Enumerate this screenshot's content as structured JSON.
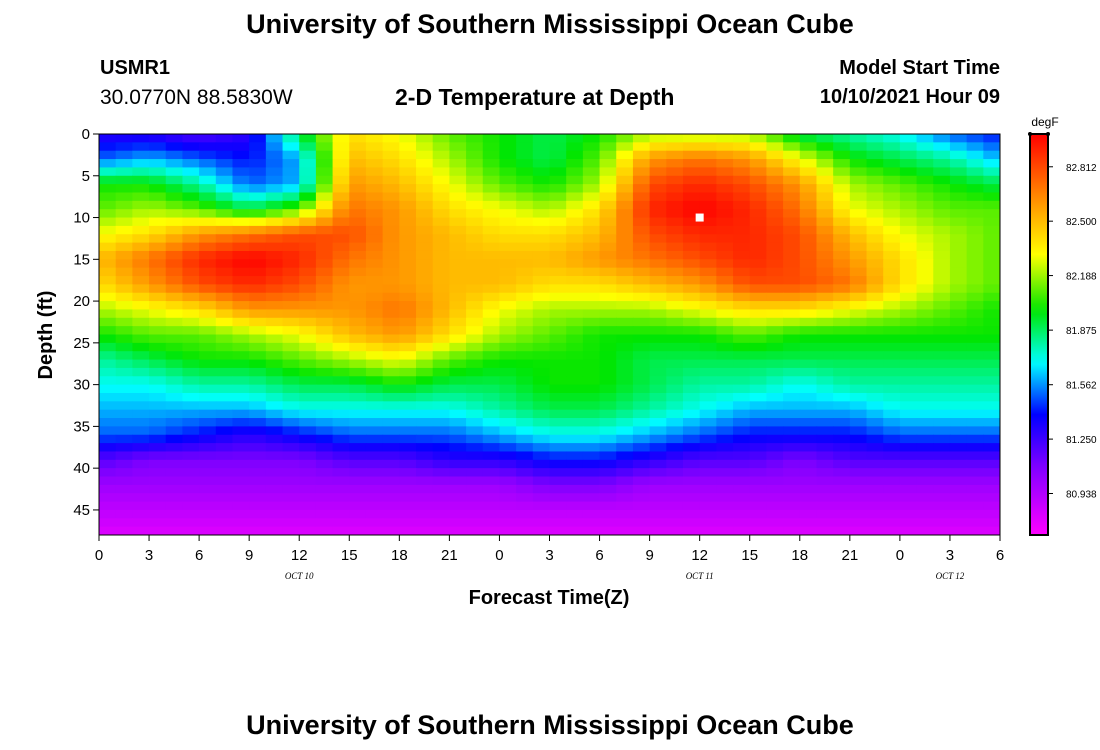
{
  "page": {
    "title": "University of Southern Mississippi Ocean Cube",
    "footer_title": "University of Southern Mississippi Ocean Cube",
    "station_id": "USMR1",
    "station_coords": "30.0770N  88.5830W",
    "chart_heading": "2-D Temperature at Depth",
    "model_start_label": "Model Start Time",
    "model_start_value": "10/10/2021 Hour 09"
  },
  "chart_data": {
    "type": "heatmap",
    "title": "2-D Temperature at Depth",
    "xlabel": "Forecast Time(Z)",
    "ylabel": "Depth (ft)",
    "x_hours_from_start": [
      0,
      3,
      6,
      9,
      12,
      15,
      18,
      21,
      24,
      27,
      30,
      33,
      36,
      39,
      42,
      45,
      48,
      51,
      54
    ],
    "x_tick_labels": [
      "0",
      "3",
      "6",
      "9",
      "12",
      "15",
      "18",
      "21",
      "0",
      "3",
      "6",
      "9",
      "12",
      "15",
      "18",
      "21",
      "0",
      "3",
      "6"
    ],
    "date_labels": [
      {
        "text": "OCT 10",
        "hour": 12
      },
      {
        "text": "OCT 11",
        "hour": 36
      },
      {
        "text": "OCT 12",
        "hour": 51
      }
    ],
    "xlim": [
      0,
      54
    ],
    "ylim": [
      0,
      48
    ],
    "y_ticks": [
      0,
      5,
      10,
      15,
      20,
      25,
      30,
      35,
      40,
      45
    ],
    "colorbar": {
      "unit": "degF",
      "min": 80.7,
      "max": 83.0,
      "tick_values": [
        82.812,
        82.5,
        82.188,
        81.875,
        81.562,
        81.25,
        80.938
      ],
      "tick_labels": [
        "82.812",
        "82.500",
        "82.188",
        "81.875",
        "81.562",
        "81.250",
        "80.938"
      ]
    },
    "marker": {
      "hour": 36,
      "depth": 10,
      "color": "#ffffff"
    },
    "temperature_degF": {
      "hours": [
        0,
        3,
        6,
        9,
        12,
        15,
        18,
        21,
        24,
        27,
        30,
        33,
        36,
        39,
        42,
        45,
        48,
        51,
        54
      ],
      "depths": [
        0,
        3,
        6,
        9,
        12,
        15,
        18,
        21,
        24,
        27,
        30,
        33,
        36,
        39,
        42,
        45,
        48
      ],
      "rows": [
        [
          81.3,
          81.3,
          81.2,
          81.3,
          81.9,
          82.4,
          82.3,
          82.1,
          82.0,
          81.9,
          82.0,
          82.2,
          82.2,
          82.2,
          81.9,
          81.8,
          81.7,
          81.5,
          81.4
        ],
        [
          81.5,
          81.6,
          81.5,
          81.4,
          81.6,
          82.5,
          82.4,
          82.2,
          82.0,
          81.9,
          82.1,
          82.6,
          82.7,
          82.6,
          82.3,
          82.0,
          81.9,
          81.8,
          81.6
        ],
        [
          82.0,
          82.0,
          81.8,
          81.5,
          81.6,
          82.6,
          82.5,
          82.3,
          82.1,
          82.0,
          82.2,
          82.8,
          82.9,
          82.8,
          82.6,
          82.2,
          82.1,
          82.0,
          81.9
        ],
        [
          82.1,
          82.2,
          82.1,
          81.9,
          82.1,
          82.7,
          82.6,
          82.4,
          82.3,
          82.2,
          82.4,
          82.9,
          83.0,
          82.9,
          82.7,
          82.3,
          82.2,
          82.1,
          82.1
        ],
        [
          82.3,
          82.4,
          82.6,
          82.7,
          82.8,
          82.8,
          82.6,
          82.5,
          82.4,
          82.4,
          82.5,
          82.8,
          82.9,
          82.9,
          82.8,
          82.5,
          82.3,
          82.2,
          82.1
        ],
        [
          82.5,
          82.7,
          82.9,
          83.0,
          82.9,
          82.7,
          82.6,
          82.5,
          82.5,
          82.5,
          82.6,
          82.7,
          82.8,
          82.9,
          82.8,
          82.6,
          82.4,
          82.2,
          82.1
        ],
        [
          82.4,
          82.6,
          82.8,
          82.9,
          82.8,
          82.6,
          82.6,
          82.5,
          82.5,
          82.4,
          82.4,
          82.5,
          82.6,
          82.8,
          82.8,
          82.7,
          82.4,
          82.2,
          82.1
        ],
        [
          82.2,
          82.3,
          82.4,
          82.6,
          82.6,
          82.6,
          82.7,
          82.5,
          82.3,
          82.2,
          82.2,
          82.2,
          82.3,
          82.4,
          82.4,
          82.3,
          82.2,
          82.1,
          82.0
        ],
        [
          82.0,
          82.1,
          82.1,
          82.2,
          82.3,
          82.5,
          82.6,
          82.4,
          82.2,
          82.1,
          82.0,
          82.0,
          82.0,
          82.1,
          82.0,
          82.0,
          82.0,
          82.0,
          82.0
        ],
        [
          81.8,
          81.9,
          82.0,
          82.0,
          82.1,
          82.2,
          82.3,
          82.1,
          82.0,
          82.0,
          82.0,
          81.9,
          81.9,
          81.9,
          81.9,
          81.9,
          81.9,
          81.9,
          81.9
        ],
        [
          81.7,
          81.7,
          81.8,
          81.8,
          81.9,
          81.9,
          82.0,
          81.9,
          81.9,
          82.0,
          82.0,
          81.9,
          81.8,
          81.8,
          81.7,
          81.8,
          81.8,
          81.8,
          81.8
        ],
        [
          81.6,
          81.6,
          81.6,
          81.6,
          81.7,
          81.7,
          81.7,
          81.7,
          81.8,
          81.9,
          81.9,
          81.8,
          81.7,
          81.6,
          81.6,
          81.6,
          81.7,
          81.7,
          81.7
        ],
        [
          81.5,
          81.5,
          81.4,
          81.3,
          81.4,
          81.5,
          81.5,
          81.5,
          81.6,
          81.7,
          81.7,
          81.6,
          81.5,
          81.4,
          81.4,
          81.4,
          81.5,
          81.5,
          81.5
        ],
        [
          81.2,
          81.1,
          81.1,
          81.1,
          81.1,
          81.2,
          81.2,
          81.3,
          81.3,
          81.4,
          81.4,
          81.3,
          81.2,
          81.2,
          81.1,
          81.2,
          81.2,
          81.2,
          81.2
        ],
        [
          81.0,
          81.0,
          81.0,
          81.0,
          81.0,
          81.0,
          81.0,
          81.0,
          81.0,
          81.1,
          81.1,
          81.0,
          81.0,
          81.0,
          81.0,
          81.0,
          81.0,
          81.0,
          81.0
        ],
        [
          80.9,
          80.9,
          80.9,
          80.9,
          80.9,
          80.9,
          80.9,
          80.9,
          80.9,
          80.9,
          80.9,
          80.9,
          80.9,
          80.9,
          80.9,
          80.9,
          80.9,
          80.9,
          80.9
        ],
        [
          80.8,
          80.8,
          80.8,
          80.8,
          80.8,
          80.8,
          80.8,
          80.8,
          80.8,
          80.8,
          80.8,
          80.8,
          80.8,
          80.8,
          80.8,
          80.8,
          80.8,
          80.8,
          80.8
        ]
      ]
    }
  }
}
